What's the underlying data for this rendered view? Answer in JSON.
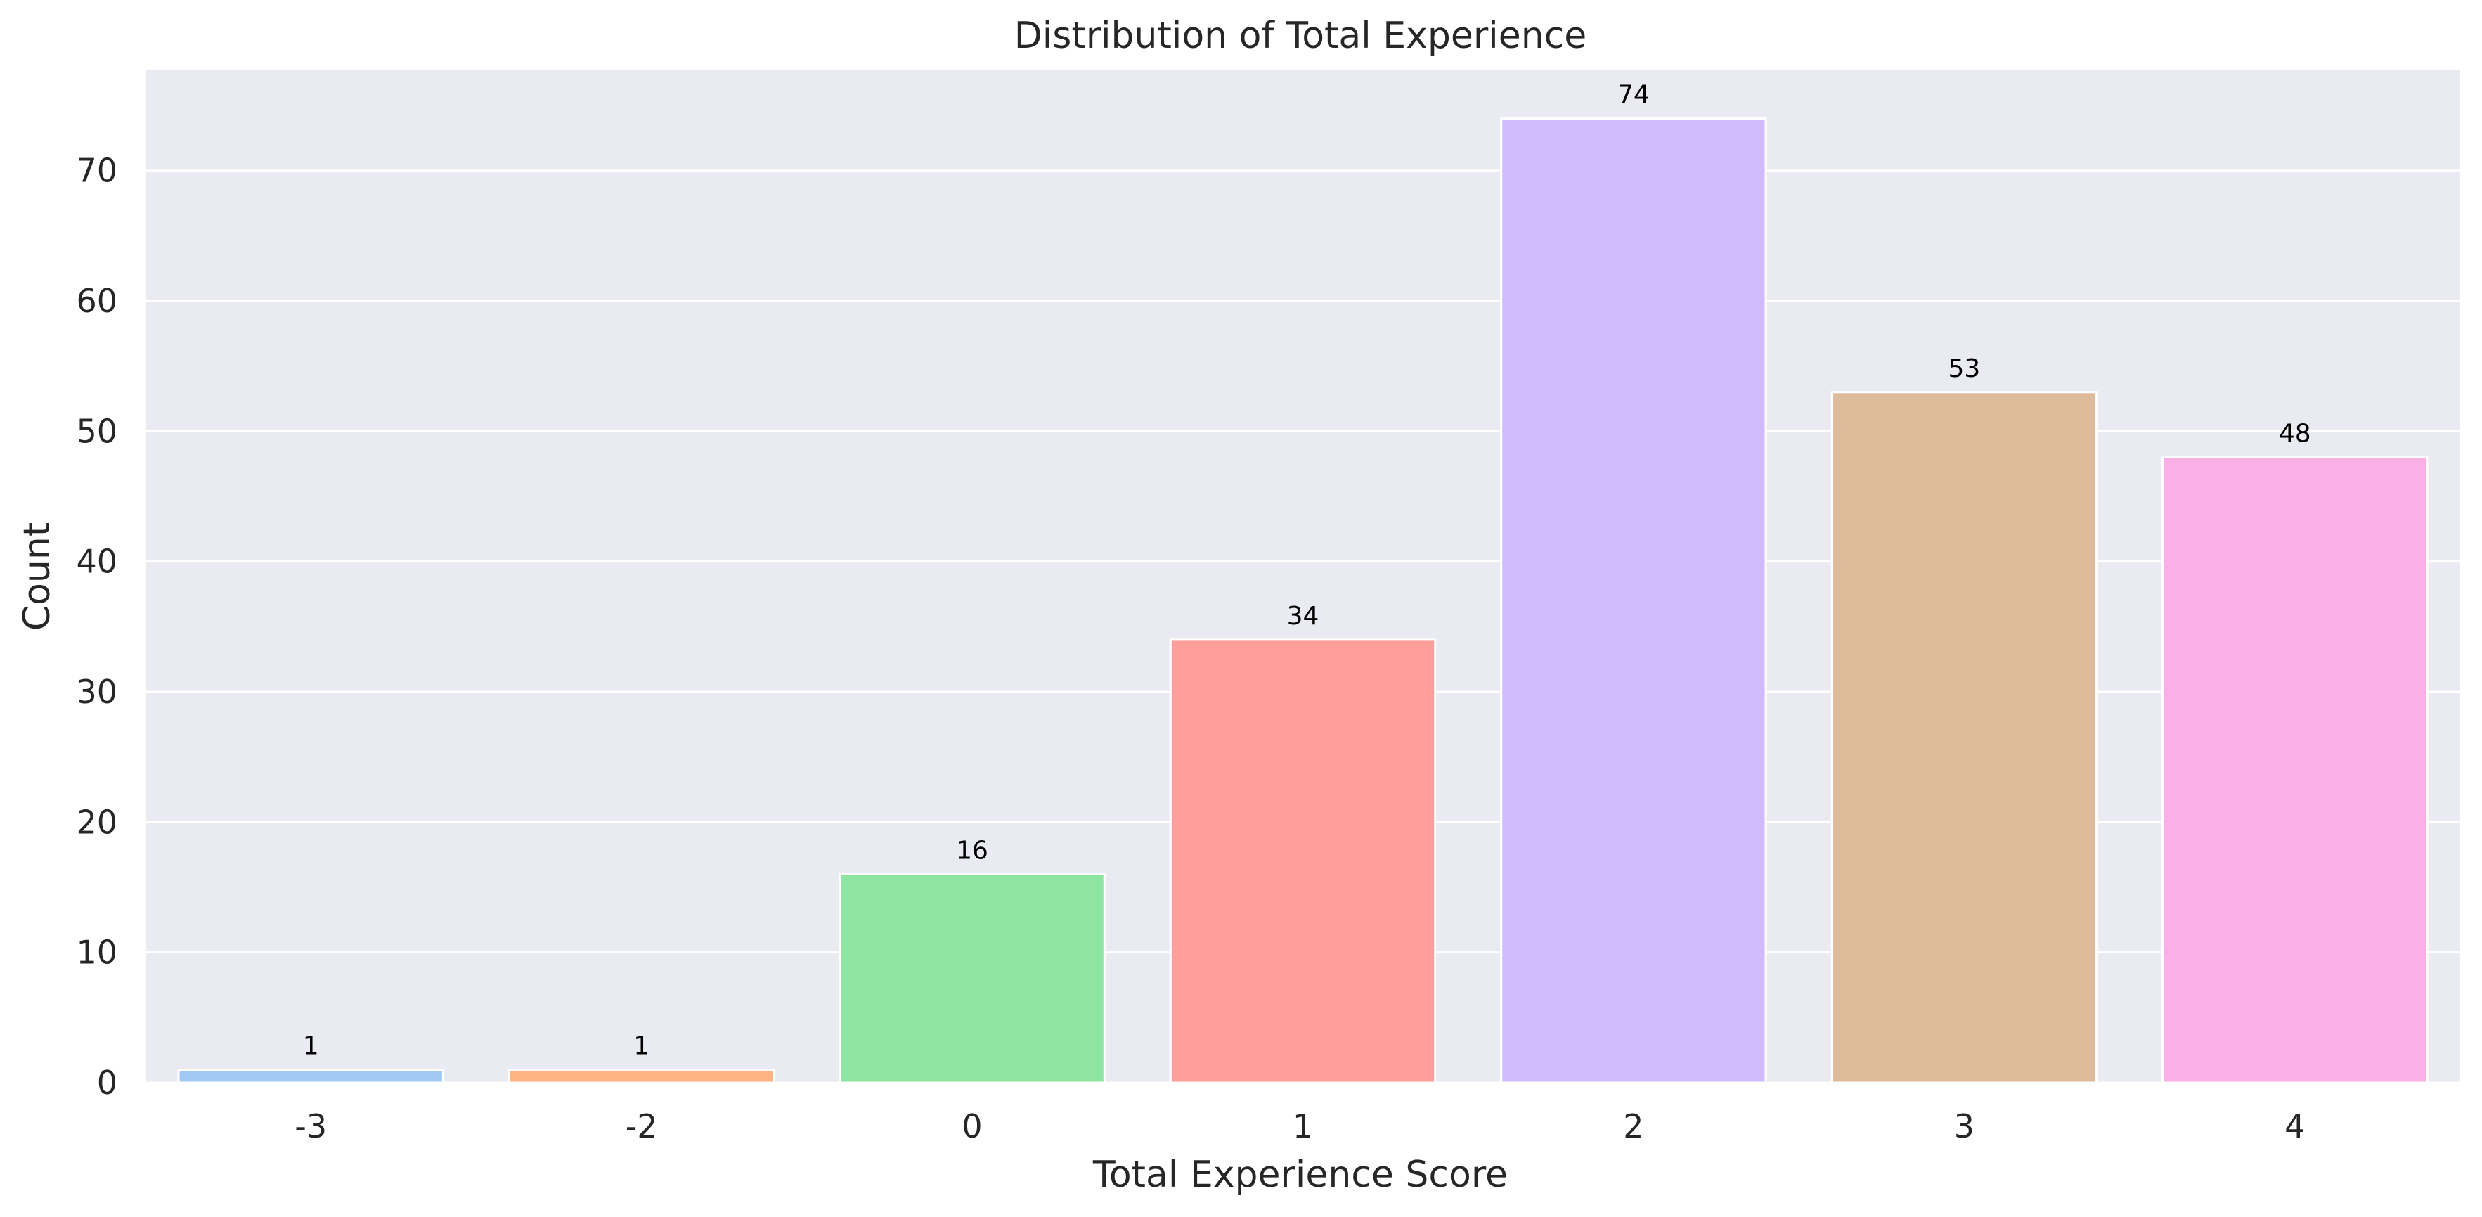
{
  "chart_data": {
    "type": "bar",
    "title": "Distribution of Total Experience",
    "xlabel": "Total Experience Score",
    "ylabel": "Count",
    "categories": [
      "-3",
      "-2",
      "0",
      "1",
      "2",
      "3",
      "4"
    ],
    "values": [
      1,
      1,
      16,
      34,
      74,
      53,
      48
    ],
    "data_labels": [
      "1",
      "1",
      "16",
      "34",
      "74",
      "53",
      "48"
    ],
    "colors": [
      "#a1c9f4",
      "#ffb482",
      "#8de5a1",
      "#ff9f9b",
      "#d0bbff",
      "#debb9b",
      "#fab0e4"
    ],
    "ylim": [
      0,
      77.7
    ],
    "yticks": [
      0,
      10,
      20,
      30,
      40,
      50,
      60,
      70
    ],
    "ytick_labels": [
      "0",
      "10",
      "20",
      "30",
      "40",
      "50",
      "60",
      "70"
    ],
    "grid": true,
    "legend": "none",
    "style": "seaborn-darkgrid"
  }
}
